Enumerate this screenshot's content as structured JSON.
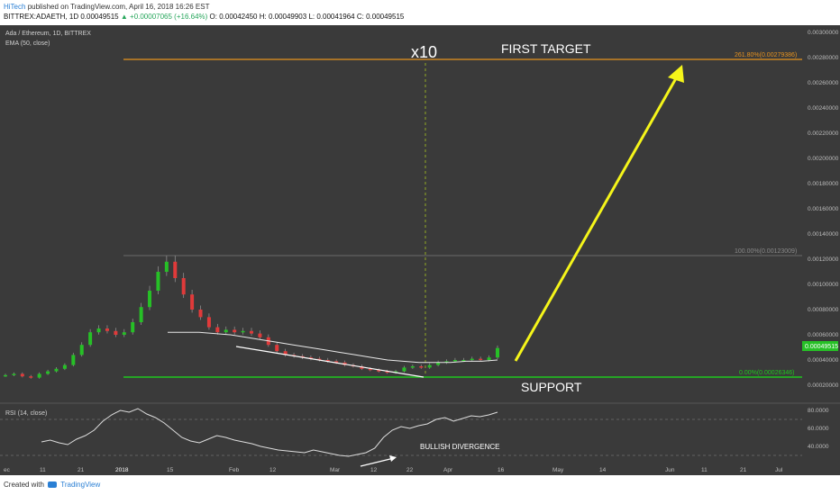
{
  "header": {
    "author": "HiTech",
    "published": "published on TradingView.com, April 16, 2018 16:26 EST",
    "symbol": "BITTREX:ADAETH, 1D",
    "price": "0.00049515",
    "change_arrow": "▲",
    "change": "+0.00007065 (+16.64%)",
    "open": "O: 0.00042450",
    "high": "H: 0.00049903",
    "low": "L: 0.00041964",
    "close": "C: 0.00049515"
  },
  "footer": {
    "created_with": "Created with",
    "brand": "TradingView"
  },
  "colors": {
    "background": "#3a3a3a",
    "up_candle": "#26c026",
    "down_candle": "#e03a3a",
    "fib_line": "#e8931e",
    "support_line": "#1ec81e",
    "arrow": "#f5f51a",
    "price_badge": "#26c026"
  },
  "chart_data": [
    {
      "type": "candlestick",
      "title": "Ada / Ethereum, 1D, BITTREX",
      "indicator_label": "EMA (50, close)",
      "x_ticks": [
        "ec",
        "11",
        "21",
        "2018",
        "15",
        "Feb",
        "12",
        "Mar",
        "12",
        "22",
        "Apr",
        "16",
        "May",
        "14",
        "Jun",
        "11",
        "21",
        "Jul"
      ],
      "y_ticks": [
        "0.00300000",
        "0.00280000",
        "0.00260000",
        "0.00240000",
        "0.00220000",
        "0.00200000",
        "0.00180000",
        "0.00160000",
        "0.00140000",
        "0.00120000",
        "0.00100000",
        "0.00080000",
        "0.00060000",
        "0.00040000",
        "0.00020000"
      ],
      "ylim": [
        0.00013,
        0.00306
      ],
      "current_price": "0.00049515",
      "series_close": [
        0.00028,
        0.00029,
        0.00027,
        0.00026,
        0.00029,
        0.00031,
        0.00033,
        0.00036,
        0.00044,
        0.00052,
        0.00062,
        0.00065,
        0.00063,
        0.0006,
        0.00062,
        0.0007,
        0.00082,
        0.00095,
        0.0011,
        0.00118,
        0.00105,
        0.00092,
        0.0008,
        0.00074,
        0.00066,
        0.00062,
        0.00064,
        0.00062,
        0.00063,
        0.00061,
        0.00058,
        0.00052,
        0.00047,
        0.00044,
        0.00043,
        0.00042,
        0.00041,
        0.0004,
        0.00039,
        0.00038,
        0.00036,
        0.00035,
        0.00033,
        0.00032,
        0.00031,
        0.0003,
        0.00031,
        0.00034,
        0.00035,
        0.00034,
        0.00036,
        0.00038,
        0.00039,
        0.0004,
        0.0004,
        0.00041,
        0.0004,
        0.00042,
        0.00049515
      ],
      "ema_50": [
        0.00062,
        0.00062,
        0.00062,
        0.00061,
        0.0006,
        0.00058,
        0.00056,
        0.00054,
        0.00052,
        0.0005,
        0.00048,
        0.00046,
        0.00044,
        0.00042,
        0.0004,
        0.00039,
        0.00038,
        0.00038,
        0.00038,
        0.00039,
        0.00039,
        0.0004
      ],
      "annotations": [
        {
          "text": "x10"
        },
        {
          "text": "FIRST TARGET"
        },
        {
          "text": "SUPPORT"
        },
        {
          "text": "261.80%(0.00279386)",
          "value": 0.00279386
        },
        {
          "text": "100.00%(0.00123009)",
          "value": 0.00123009
        },
        {
          "text": "0.00%(0.00026346)",
          "value": 0.00026346
        }
      ]
    },
    {
      "type": "line",
      "title": "RSI (14, close)",
      "y_ticks": [
        "80.0000",
        "60.0000",
        "40.0000"
      ],
      "ylim": [
        20,
        90
      ],
      "levels": [
        70,
        30
      ],
      "values": [
        45,
        47,
        44,
        42,
        48,
        52,
        58,
        68,
        75,
        80,
        78,
        82,
        76,
        72,
        66,
        58,
        50,
        46,
        44,
        48,
        52,
        50,
        47,
        45,
        43,
        40,
        38,
        36,
        35,
        34,
        33,
        36,
        34,
        32,
        30,
        29,
        31,
        33,
        38,
        50,
        58,
        62,
        60,
        63,
        65,
        70,
        72,
        68,
        71,
        74,
        73,
        75,
        78
      ],
      "annotation": "BULLISH DIVERGENCE"
    }
  ]
}
